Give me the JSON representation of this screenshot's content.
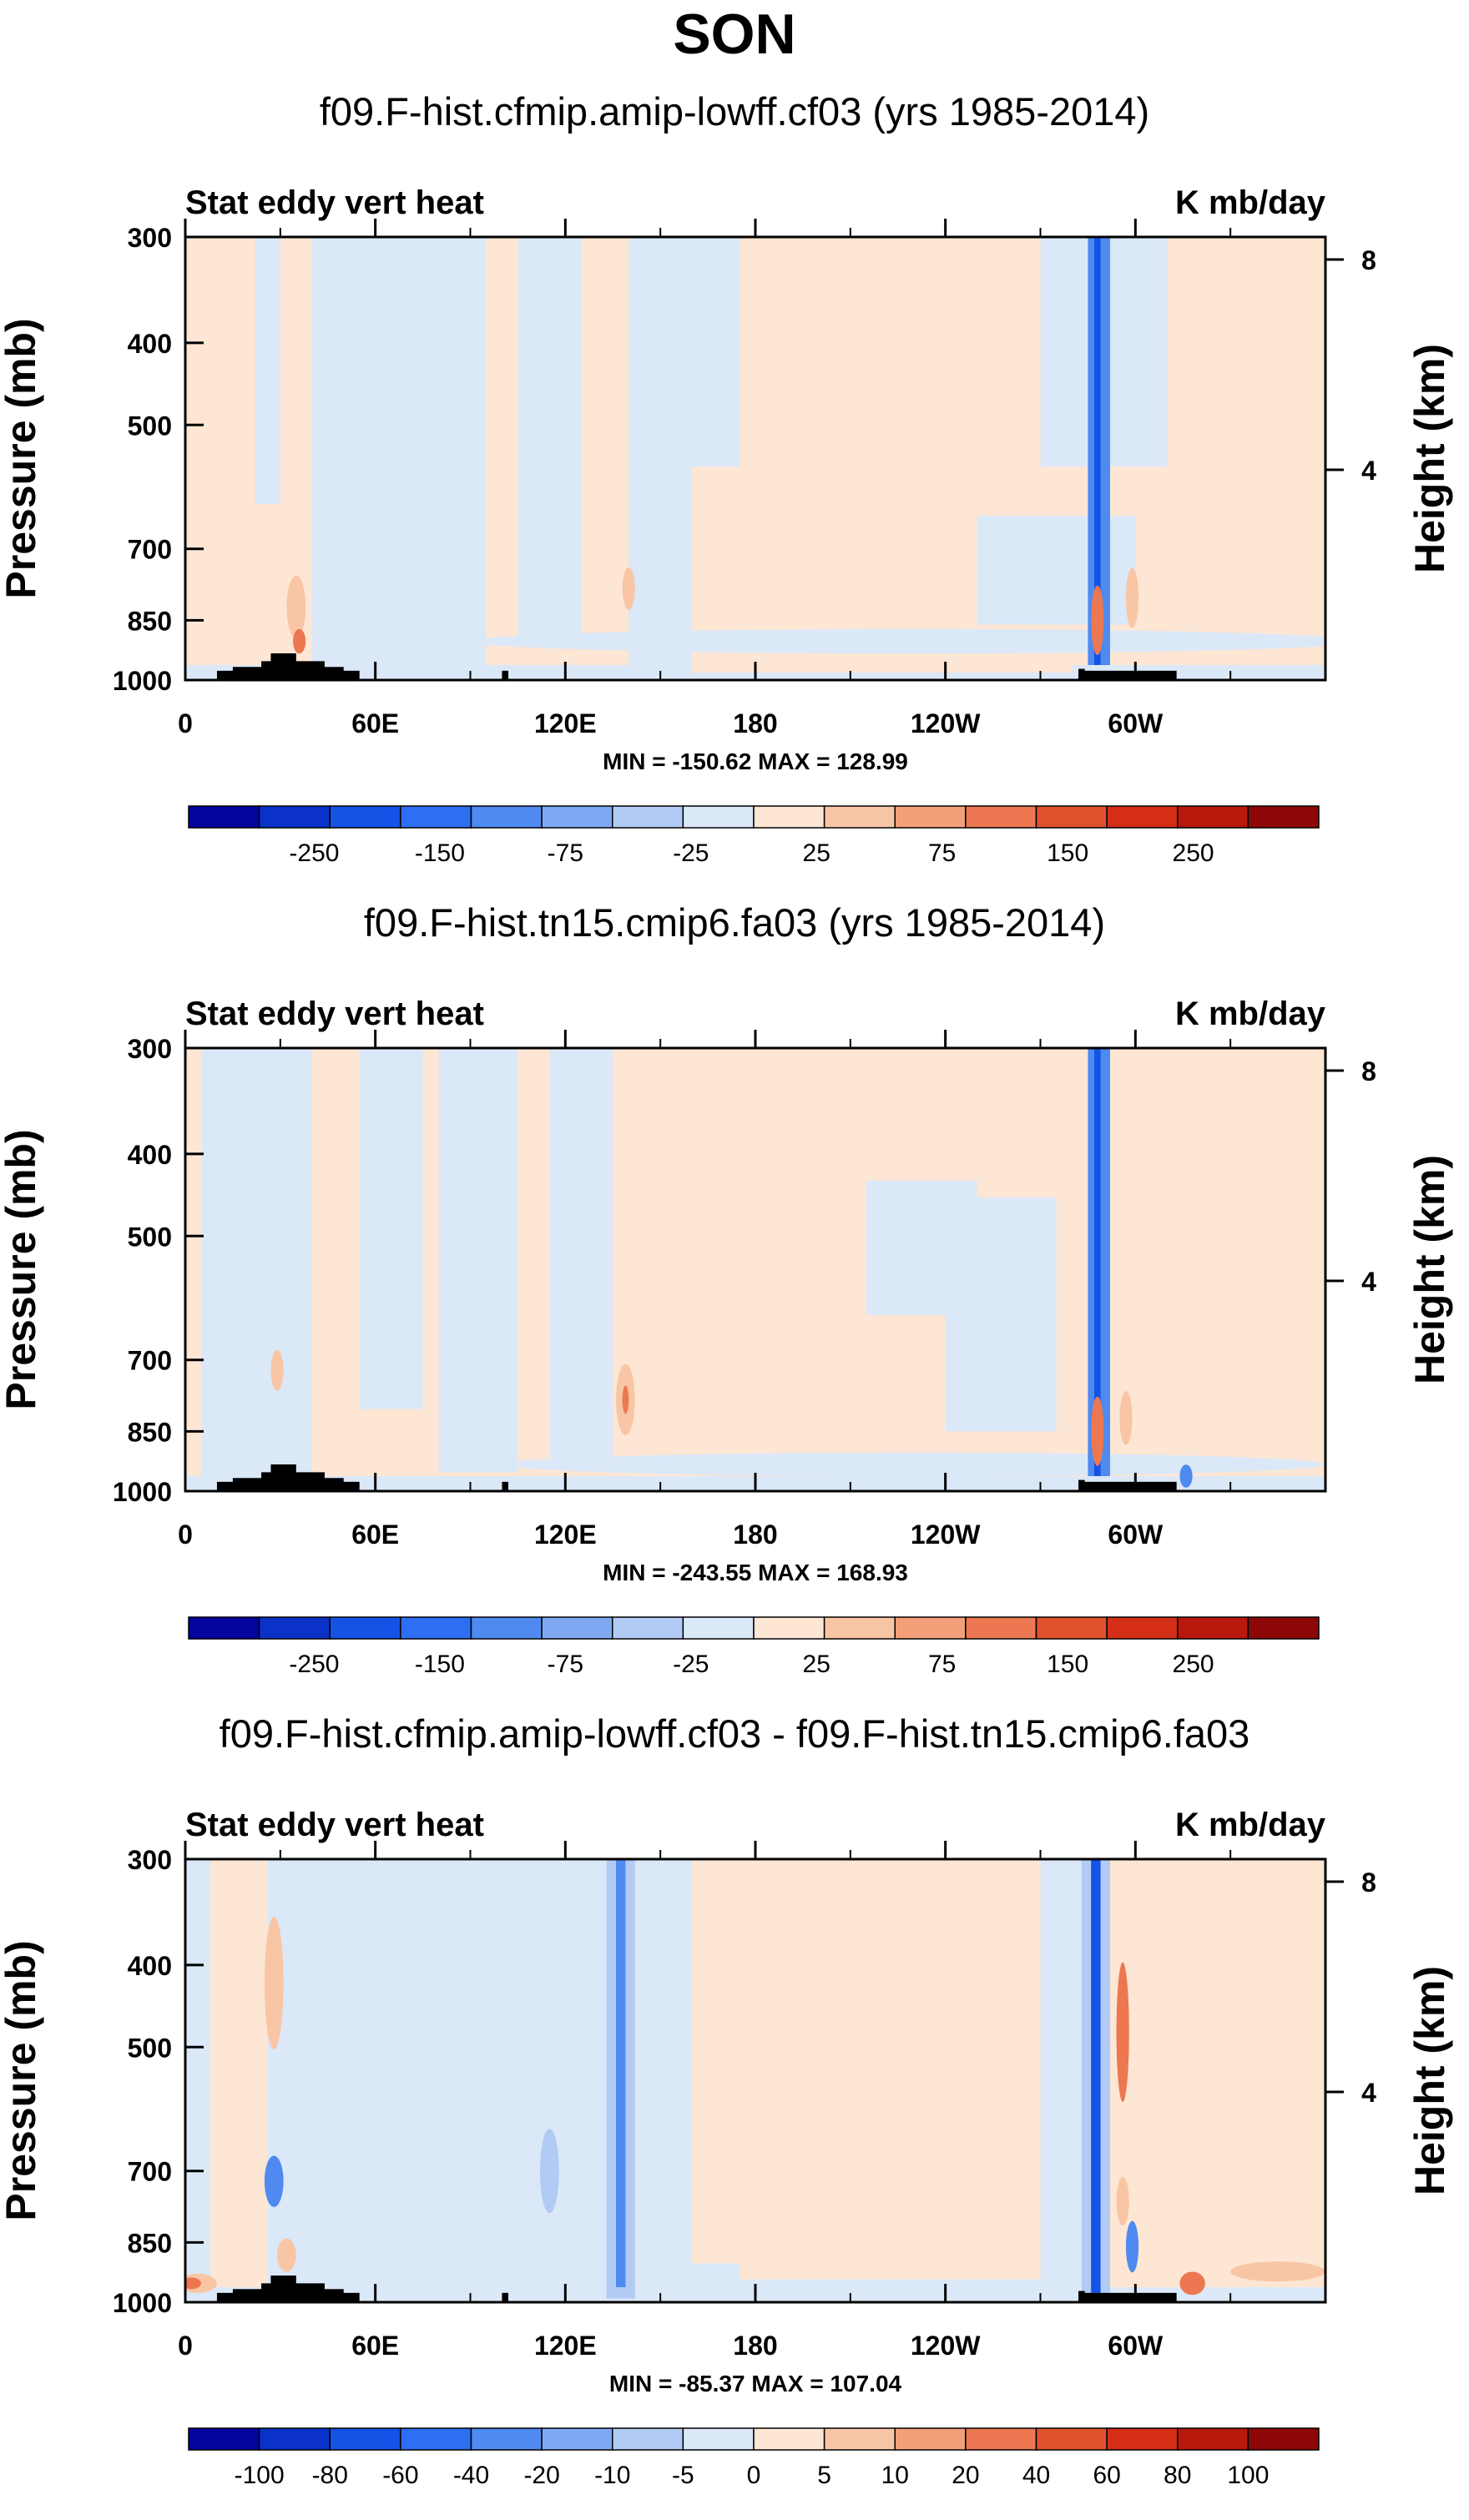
{
  "page": {
    "title": "SON"
  },
  "chart_data": [
    {
      "type": "heatmap",
      "title": "f09.F-hist.cfmip.amip-lowff.cf03 (yrs 1985-2014)",
      "left_string": "Stat eddy vert heat",
      "right_string": "K mb/day",
      "ylabel": "Pressure (mb)",
      "ylabel_right": "Height (km)",
      "xticks": [
        "0",
        "60E",
        "120E",
        "180",
        "120W",
        "60W"
      ],
      "yticks": [
        "300",
        "400",
        "500",
        "700",
        "850",
        "1000"
      ],
      "yticks_right": [
        "8",
        "4"
      ],
      "stats": "MIN = -150.62  MAX = 128.99",
      "min": -150.62,
      "max": 128.99,
      "colorbar_labels": [
        "-250",
        "-150",
        "-75",
        "-25",
        "25",
        "75",
        "150",
        "250"
      ],
      "colorbar_colors": [
        "#04049e",
        "#0b32c8",
        "#1453e6",
        "#2e6ef2",
        "#4f8af0",
        "#7fa9f2",
        "#b1cbf5",
        "#dbe8f8",
        "#fde6d4",
        "#f8c6a5",
        "#f3a07a",
        "#ec7750",
        "#e2512d",
        "#d42e16",
        "#b7190c",
        "#8e0707"
      ]
    },
    {
      "type": "heatmap",
      "title": "f09.F-hist.tn15.cmip6.fa03 (yrs 1985-2014)",
      "left_string": "Stat eddy vert heat",
      "right_string": "K mb/day",
      "ylabel": "Pressure (mb)",
      "ylabel_right": "Height (km)",
      "xticks": [
        "0",
        "60E",
        "120E",
        "180",
        "120W",
        "60W"
      ],
      "yticks": [
        "300",
        "400",
        "500",
        "700",
        "850",
        "1000"
      ],
      "yticks_right": [
        "8",
        "4"
      ],
      "stats": "MIN = -243.55  MAX = 168.93",
      "min": -243.55,
      "max": 168.93,
      "colorbar_labels": [
        "-250",
        "-150",
        "-75",
        "-25",
        "25",
        "75",
        "150",
        "250"
      ],
      "colorbar_colors": [
        "#04049e",
        "#0b32c8",
        "#1453e6",
        "#2e6ef2",
        "#4f8af0",
        "#7fa9f2",
        "#b1cbf5",
        "#dbe8f8",
        "#fde6d4",
        "#f8c6a5",
        "#f3a07a",
        "#ec7750",
        "#e2512d",
        "#d42e16",
        "#b7190c",
        "#8e0707"
      ]
    },
    {
      "type": "heatmap",
      "title": "f09.F-hist.cfmip.amip-lowff.cf03 - f09.F-hist.tn15.cmip6.fa03",
      "left_string": "Stat eddy vert heat",
      "right_string": "K mb/day",
      "ylabel": "Pressure (mb)",
      "ylabel_right": "Height (km)",
      "xticks": [
        "0",
        "60E",
        "120E",
        "180",
        "120W",
        "60W"
      ],
      "yticks": [
        "300",
        "400",
        "500",
        "700",
        "850",
        "1000"
      ],
      "yticks_right": [
        "8",
        "4"
      ],
      "stats": "MIN = -85.37  MAX = 107.04",
      "min": -85.37,
      "max": 107.04,
      "colorbar_labels": [
        "-100",
        "-80",
        "-60",
        "-40",
        "-20",
        "-10",
        "-5",
        "0",
        "5",
        "10",
        "20",
        "40",
        "60",
        "80",
        "100"
      ],
      "colorbar_colors": [
        "#04049e",
        "#0b32c8",
        "#1453e6",
        "#2e6ef2",
        "#4f8af0",
        "#7fa9f2",
        "#b1cbf5",
        "#dbe8f8",
        "#fde6d4",
        "#f8c6a5",
        "#f3a07a",
        "#ec7750",
        "#e2512d",
        "#d42e16",
        "#b7190c",
        "#8e0707"
      ]
    }
  ]
}
